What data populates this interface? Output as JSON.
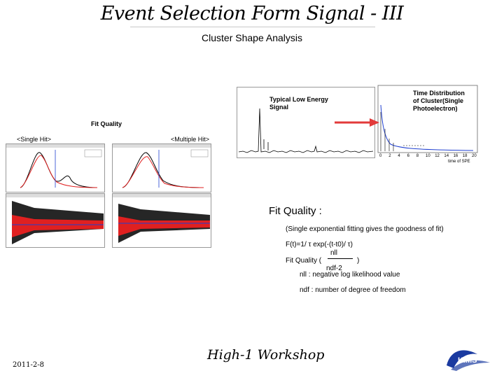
{
  "slide": {
    "title": "Event Selection Form Signal - III",
    "subtitle": "Cluster Shape Analysis",
    "footer_date": "2011-2-8",
    "footer_title": "High-1 Workshop",
    "logo_text": "KIMS"
  },
  "waveform": {
    "annotation": "Typical Low Energy\nSignal"
  },
  "time_distribution": {
    "annotation": "Time Distribution\nof Cluster(Single\nPhotoelectron)",
    "x_ticks": [
      "0",
      "2",
      "4",
      "6",
      "8",
      "10",
      "12",
      "14",
      "16",
      "18",
      "20"
    ],
    "x_label": "time of SPE"
  },
  "fit_quality_section": {
    "label": "Fit Quality",
    "single_hit_label": "<Single Hit>",
    "multiple_hit_label": "<Multiple Hit>"
  },
  "fit_quality_text": {
    "heading": "Fit Quality :",
    "line1": "(Single exponential fitting gives the goodness of fit)",
    "formula": "F(t)=1/ τ exp(-(t-t0)/ τ)",
    "fq_label": "Fit Quality (",
    "numerator": "nll",
    "denominator": "ndf-2",
    "close_paren": ")",
    "nll_def": "nll : negative log likelihood value",
    "ndf_def": "ndf : number of degree of freedom"
  },
  "colors": {
    "accent_red": "#e02020",
    "arrow_red": "#e23a3a",
    "fit_blue": "#2040d0",
    "logo_blue": "#1a3aa0"
  }
}
